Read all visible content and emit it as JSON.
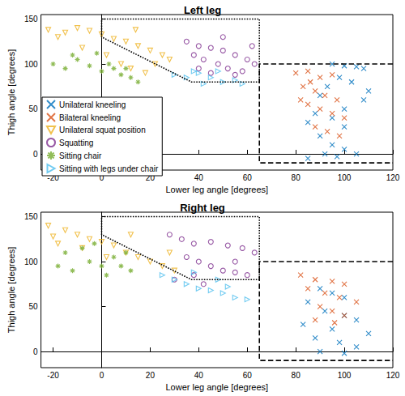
{
  "chart_data": [
    {
      "type": "scatter",
      "title": "Left leg",
      "x_label": "Lower leg angle [degrees]",
      "y_label": "Thigh angle [degrees]",
      "xlim": [
        -25,
        120
      ],
      "ylim": [
        -18,
        155
      ],
      "xticks": [
        -20,
        0,
        20,
        40,
        60,
        80,
        100,
        120
      ],
      "yticks": [
        0,
        50,
        100,
        150
      ],
      "grid": false,
      "legend": "lower left",
      "series": [
        {
          "name": "Unilateral kneeling",
          "color": "#0072BD",
          "marker": "x",
          "values": [
            [
              95,
              100
            ],
            [
              100,
              98
            ],
            [
              105,
              97
            ],
            [
              98,
              85
            ],
            [
              103,
              80
            ],
            [
              93,
              75
            ],
            [
              90,
              65
            ],
            [
              108,
              60
            ],
            [
              100,
              50
            ],
            [
              88,
              45
            ],
            [
              95,
              40
            ],
            [
              85,
              35
            ],
            [
              100,
              30
            ],
            [
              90,
              20
            ],
            [
              95,
              10
            ],
            [
              100,
              5
            ],
            [
              92,
              0
            ],
            [
              97,
              -3
            ],
            [
              85,
              -5
            ],
            [
              105,
              0
            ],
            [
              110,
              70
            ],
            [
              108,
              95
            ]
          ]
        },
        {
          "name": "Bilateral kneeling",
          "color": "#D95319",
          "marker": "x",
          "values": [
            [
              80,
              90
            ],
            [
              85,
              92
            ],
            [
              90,
              85
            ],
            [
              95,
              88
            ],
            [
              83,
              75
            ],
            [
              88,
              70
            ],
            [
              92,
              65
            ],
            [
              97,
              60
            ],
            [
              85,
              55
            ],
            [
              90,
              50
            ],
            [
              95,
              45
            ],
            [
              100,
              40
            ],
            [
              88,
              30
            ],
            [
              93,
              25
            ],
            [
              98,
              20
            ],
            [
              82,
              60
            ],
            [
              86,
              80
            ]
          ]
        },
        {
          "name": "Unilateral squat position",
          "color": "#EDB120",
          "marker": "triangle_down",
          "values": [
            [
              -22,
              138
            ],
            [
              -15,
              135
            ],
            [
              -10,
              140
            ],
            [
              -5,
              137
            ],
            [
              0,
              133
            ],
            [
              5,
              128
            ],
            [
              10,
              125
            ],
            [
              15,
              120
            ],
            [
              20,
              115
            ],
            [
              25,
              110
            ],
            [
              -8,
              118
            ],
            [
              2,
              110
            ],
            [
              8,
              100
            ],
            [
              12,
              95
            ],
            [
              18,
              90
            ],
            [
              22,
              100
            ],
            [
              28,
              105
            ],
            [
              -18,
              130
            ],
            [
              14,
              138
            ]
          ]
        },
        {
          "name": "Squatting",
          "color": "#7E2F8E",
          "marker": "circle",
          "values": [
            [
              35,
              125
            ],
            [
              40,
              120
            ],
            [
              45,
              118
            ],
            [
              50,
              115
            ],
            [
              55,
              110
            ],
            [
              60,
              105
            ],
            [
              63,
              100
            ],
            [
              38,
              110
            ],
            [
              42,
              105
            ],
            [
              48,
              100
            ],
            [
              52,
              95
            ],
            [
              45,
              90
            ],
            [
              55,
              88
            ],
            [
              40,
              95
            ],
            [
              58,
              92
            ],
            [
              62,
              120
            ],
            [
              50,
              130
            ]
          ]
        },
        {
          "name": "Sitting chair",
          "color": "#77AC30",
          "marker": "asterisk",
          "values": [
            [
              -20,
              100
            ],
            [
              -15,
              95
            ],
            [
              -10,
              105
            ],
            [
              -5,
              98
            ],
            [
              0,
              92
            ],
            [
              5,
              95
            ],
            [
              8,
              88
            ],
            [
              12,
              85
            ],
            [
              15,
              80
            ],
            [
              -12,
              110
            ],
            [
              -2,
              112
            ],
            [
              3,
              100
            ],
            [
              10,
              95
            ]
          ]
        },
        {
          "name": "Sitting with legs under chair",
          "color": "#4DBEEE",
          "marker": "triangle_right",
          "values": [
            [
              30,
              88
            ],
            [
              35,
              85
            ],
            [
              40,
              90
            ],
            [
              45,
              85
            ],
            [
              50,
              80
            ],
            [
              55,
              82
            ],
            [
              42,
              78
            ],
            [
              38,
              92
            ],
            [
              48,
              92
            ],
            [
              58,
              78
            ]
          ]
        }
      ],
      "boundaries": [
        {
          "line_style": "dotted",
          "x": [
            0,
            65,
            65,
            37,
            0,
            0
          ],
          "y": [
            150,
            150,
            80,
            80,
            130,
            150
          ]
        },
        {
          "line_style": "dashed",
          "x": [
            120,
            65,
            65,
            120
          ],
          "y": [
            100,
            100,
            -10,
            -10
          ]
        }
      ]
    },
    {
      "type": "scatter",
      "title": "Right leg",
      "x_label": "Lower leg angle [degrees]",
      "y_label": "Thigh angle [degrees]",
      "xlim": [
        -25,
        120
      ],
      "ylim": [
        -18,
        155
      ],
      "xticks": [
        -20,
        0,
        20,
        40,
        60,
        80,
        100,
        120
      ],
      "yticks": [
        0,
        50,
        100,
        150
      ],
      "grid": false,
      "series": [
        {
          "name": "Unilateral kneeling",
          "color": "#0072BD",
          "marker": "x",
          "values": [
            [
              90,
              70
            ],
            [
              95,
              65
            ],
            [
              100,
              60
            ],
            [
              85,
              55
            ],
            [
              92,
              45
            ],
            [
              100,
              40
            ],
            [
              105,
              35
            ],
            [
              95,
              25
            ],
            [
              88,
              15
            ],
            [
              98,
              10
            ],
            [
              105,
              5
            ],
            [
              90,
              0
            ],
            [
              100,
              -2
            ],
            [
              110,
              20
            ],
            [
              83,
              30
            ]
          ]
        },
        {
          "name": "Bilateral kneeling",
          "color": "#D95319",
          "marker": "x",
          "values": [
            [
              82,
              85
            ],
            [
              88,
              80
            ],
            [
              95,
              78
            ],
            [
              100,
              75
            ],
            [
              85,
              70
            ],
            [
              92,
              65
            ],
            [
              98,
              60
            ],
            [
              105,
              55
            ],
            [
              90,
              50
            ],
            [
              95,
              45
            ],
            [
              100,
              40
            ],
            [
              88,
              35
            ],
            [
              96,
              32
            ]
          ]
        },
        {
          "name": "Unilateral squat position",
          "color": "#EDB120",
          "marker": "triangle_down",
          "values": [
            [
              -22,
              140
            ],
            [
              -15,
              135
            ],
            [
              -10,
              130
            ],
            [
              -5,
              125
            ],
            [
              0,
              122
            ],
            [
              5,
              118
            ],
            [
              10,
              110
            ],
            [
              15,
              105
            ],
            [
              20,
              100
            ],
            [
              25,
              95
            ],
            [
              30,
              90
            ],
            [
              -18,
              120
            ],
            [
              -8,
              115
            ],
            [
              2,
              105
            ],
            [
              12,
              130
            ],
            [
              28,
              110
            ],
            [
              -20,
              128
            ]
          ]
        },
        {
          "name": "Squatting",
          "color": "#7E2F8E",
          "marker": "circle",
          "values": [
            [
              28,
              130
            ],
            [
              33,
              125
            ],
            [
              38,
              120
            ],
            [
              45,
              122
            ],
            [
              52,
              118
            ],
            [
              58,
              115
            ],
            [
              63,
              110
            ],
            [
              35,
              105
            ],
            [
              40,
              100
            ],
            [
              45,
              95
            ],
            [
              50,
              90
            ],
            [
              55,
              88
            ],
            [
              60,
              85
            ],
            [
              38,
              85
            ],
            [
              30,
              80
            ],
            [
              42,
              75
            ],
            [
              55,
              100
            ]
          ]
        },
        {
          "name": "Sitting chair",
          "color": "#77AC30",
          "marker": "asterisk",
          "values": [
            [
              -18,
              95
            ],
            [
              -12,
              90
            ],
            [
              -5,
              100
            ],
            [
              0,
              95
            ],
            [
              5,
              105
            ],
            [
              10,
              110
            ],
            [
              -8,
              115
            ],
            [
              -15,
              110
            ],
            [
              2,
              85
            ],
            [
              8,
              95
            ],
            [
              -3,
              120
            ],
            [
              12,
              90
            ]
          ]
        },
        {
          "name": "Sitting with legs under chair",
          "color": "#4DBEEE",
          "marker": "triangle_right",
          "values": [
            [
              25,
              85
            ],
            [
              30,
              80
            ],
            [
              35,
              75
            ],
            [
              40,
              70
            ],
            [
              45,
              68
            ],
            [
              50,
              65
            ],
            [
              55,
              60
            ],
            [
              60,
              58
            ],
            [
              38,
              88
            ],
            [
              48,
              80
            ],
            [
              52,
              72
            ]
          ]
        }
      ],
      "boundaries": [
        {
          "line_style": "dotted",
          "x": [
            0,
            65,
            65,
            37,
            0,
            0
          ],
          "y": [
            150,
            150,
            80,
            80,
            130,
            150
          ]
        },
        {
          "line_style": "dashed",
          "x": [
            120,
            65,
            65,
            120
          ],
          "y": [
            100,
            100,
            -10,
            -10
          ]
        }
      ]
    }
  ]
}
